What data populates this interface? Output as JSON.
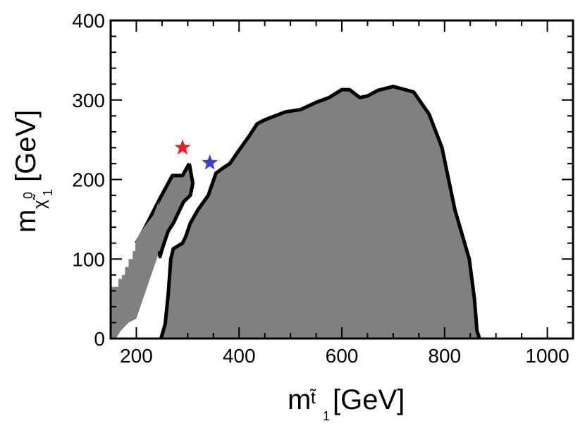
{
  "chart_data": {
    "type": "area",
    "title": "",
    "xlabel": {
      "base": "m",
      "sub_symbol": "t̃",
      "sub_index": "1",
      "unit": "[GeV]"
    },
    "ylabel": {
      "base": "m",
      "sub_symbol": "χ̃",
      "sup": "0",
      "sub_index": "1",
      "unit": "[GeV]"
    },
    "xlim": [
      150,
      1050
    ],
    "ylim": [
      0,
      400
    ],
    "xticks": [
      200,
      400,
      600,
      800,
      1000
    ],
    "yticks": [
      0,
      100,
      200,
      300,
      400
    ],
    "xtick_labels": [
      "200",
      "400",
      "600",
      "800",
      "1000"
    ],
    "ytick_labels": [
      "0",
      "100",
      "200",
      "300",
      "400"
    ],
    "grid": false,
    "colors": {
      "region_fill": "#808080",
      "outline": "#000000",
      "marker_red": "#e8202a",
      "marker_blue": "#3a3fcf"
    },
    "regions": [
      {
        "name": "main-excluded-region",
        "outline_sides": "left, top, right",
        "points": [
          [
            248,
            0
          ],
          [
            256,
            18
          ],
          [
            262,
            55
          ],
          [
            267,
            100
          ],
          [
            272,
            113
          ],
          [
            290,
            120
          ],
          [
            296,
            128
          ],
          [
            305,
            145
          ],
          [
            320,
            162
          ],
          [
            340,
            180
          ],
          [
            355,
            208
          ],
          [
            370,
            215
          ],
          [
            382,
            220
          ],
          [
            400,
            237
          ],
          [
            420,
            255
          ],
          [
            435,
            270
          ],
          [
            450,
            275
          ],
          [
            470,
            280
          ],
          [
            490,
            285
          ],
          [
            520,
            288
          ],
          [
            550,
            297
          ],
          [
            575,
            303
          ],
          [
            600,
            313
          ],
          [
            615,
            313
          ],
          [
            635,
            303
          ],
          [
            650,
            305
          ],
          [
            670,
            312
          ],
          [
            700,
            317
          ],
          [
            740,
            310
          ],
          [
            770,
            282
          ],
          [
            795,
            240
          ],
          [
            820,
            162
          ],
          [
            848,
            100
          ],
          [
            858,
            50
          ],
          [
            863,
            10
          ],
          [
            868,
            0
          ]
        ]
      },
      {
        "name": "thin-excluded-band",
        "outline_sides": "upper, lower",
        "upper_edge": [
          [
            200,
            120
          ],
          [
            215,
            137
          ],
          [
            245,
            175
          ],
          [
            270,
            205
          ],
          [
            290,
            205
          ],
          [
            303,
            220
          ]
        ],
        "lower_edge": [
          [
            303,
            220
          ],
          [
            310,
            195
          ],
          [
            305,
            180
          ],
          [
            292,
            172
          ],
          [
            272,
            145
          ],
          [
            262,
            135
          ],
          [
            250,
            112
          ],
          [
            246,
            103
          ],
          [
            245,
            110
          ],
          [
            200,
            25
          ]
        ]
      },
      {
        "name": "low-mass-staircase-region",
        "steps": [
          [
            150,
            0
          ],
          [
            150,
            65
          ],
          [
            165,
            65
          ],
          [
            165,
            75
          ],
          [
            172,
            75
          ],
          [
            172,
            80
          ],
          [
            178,
            80
          ],
          [
            178,
            90
          ],
          [
            185,
            90
          ],
          [
            185,
            100
          ],
          [
            193,
            100
          ],
          [
            193,
            110
          ],
          [
            198,
            110
          ],
          [
            198,
            118
          ],
          [
            200,
            125
          ],
          [
            215,
            140
          ],
          [
            233,
            155
          ],
          [
            245,
            175
          ],
          [
            200,
            25
          ],
          [
            185,
            20
          ],
          [
            170,
            10
          ],
          [
            160,
            0
          ]
        ]
      }
    ],
    "markers": [
      {
        "name": "red-star",
        "x": 290,
        "y": 240,
        "color": "#e8202a"
      },
      {
        "name": "blue-star",
        "x": 343,
        "y": 221,
        "color": "#3a3fcf"
      }
    ]
  }
}
